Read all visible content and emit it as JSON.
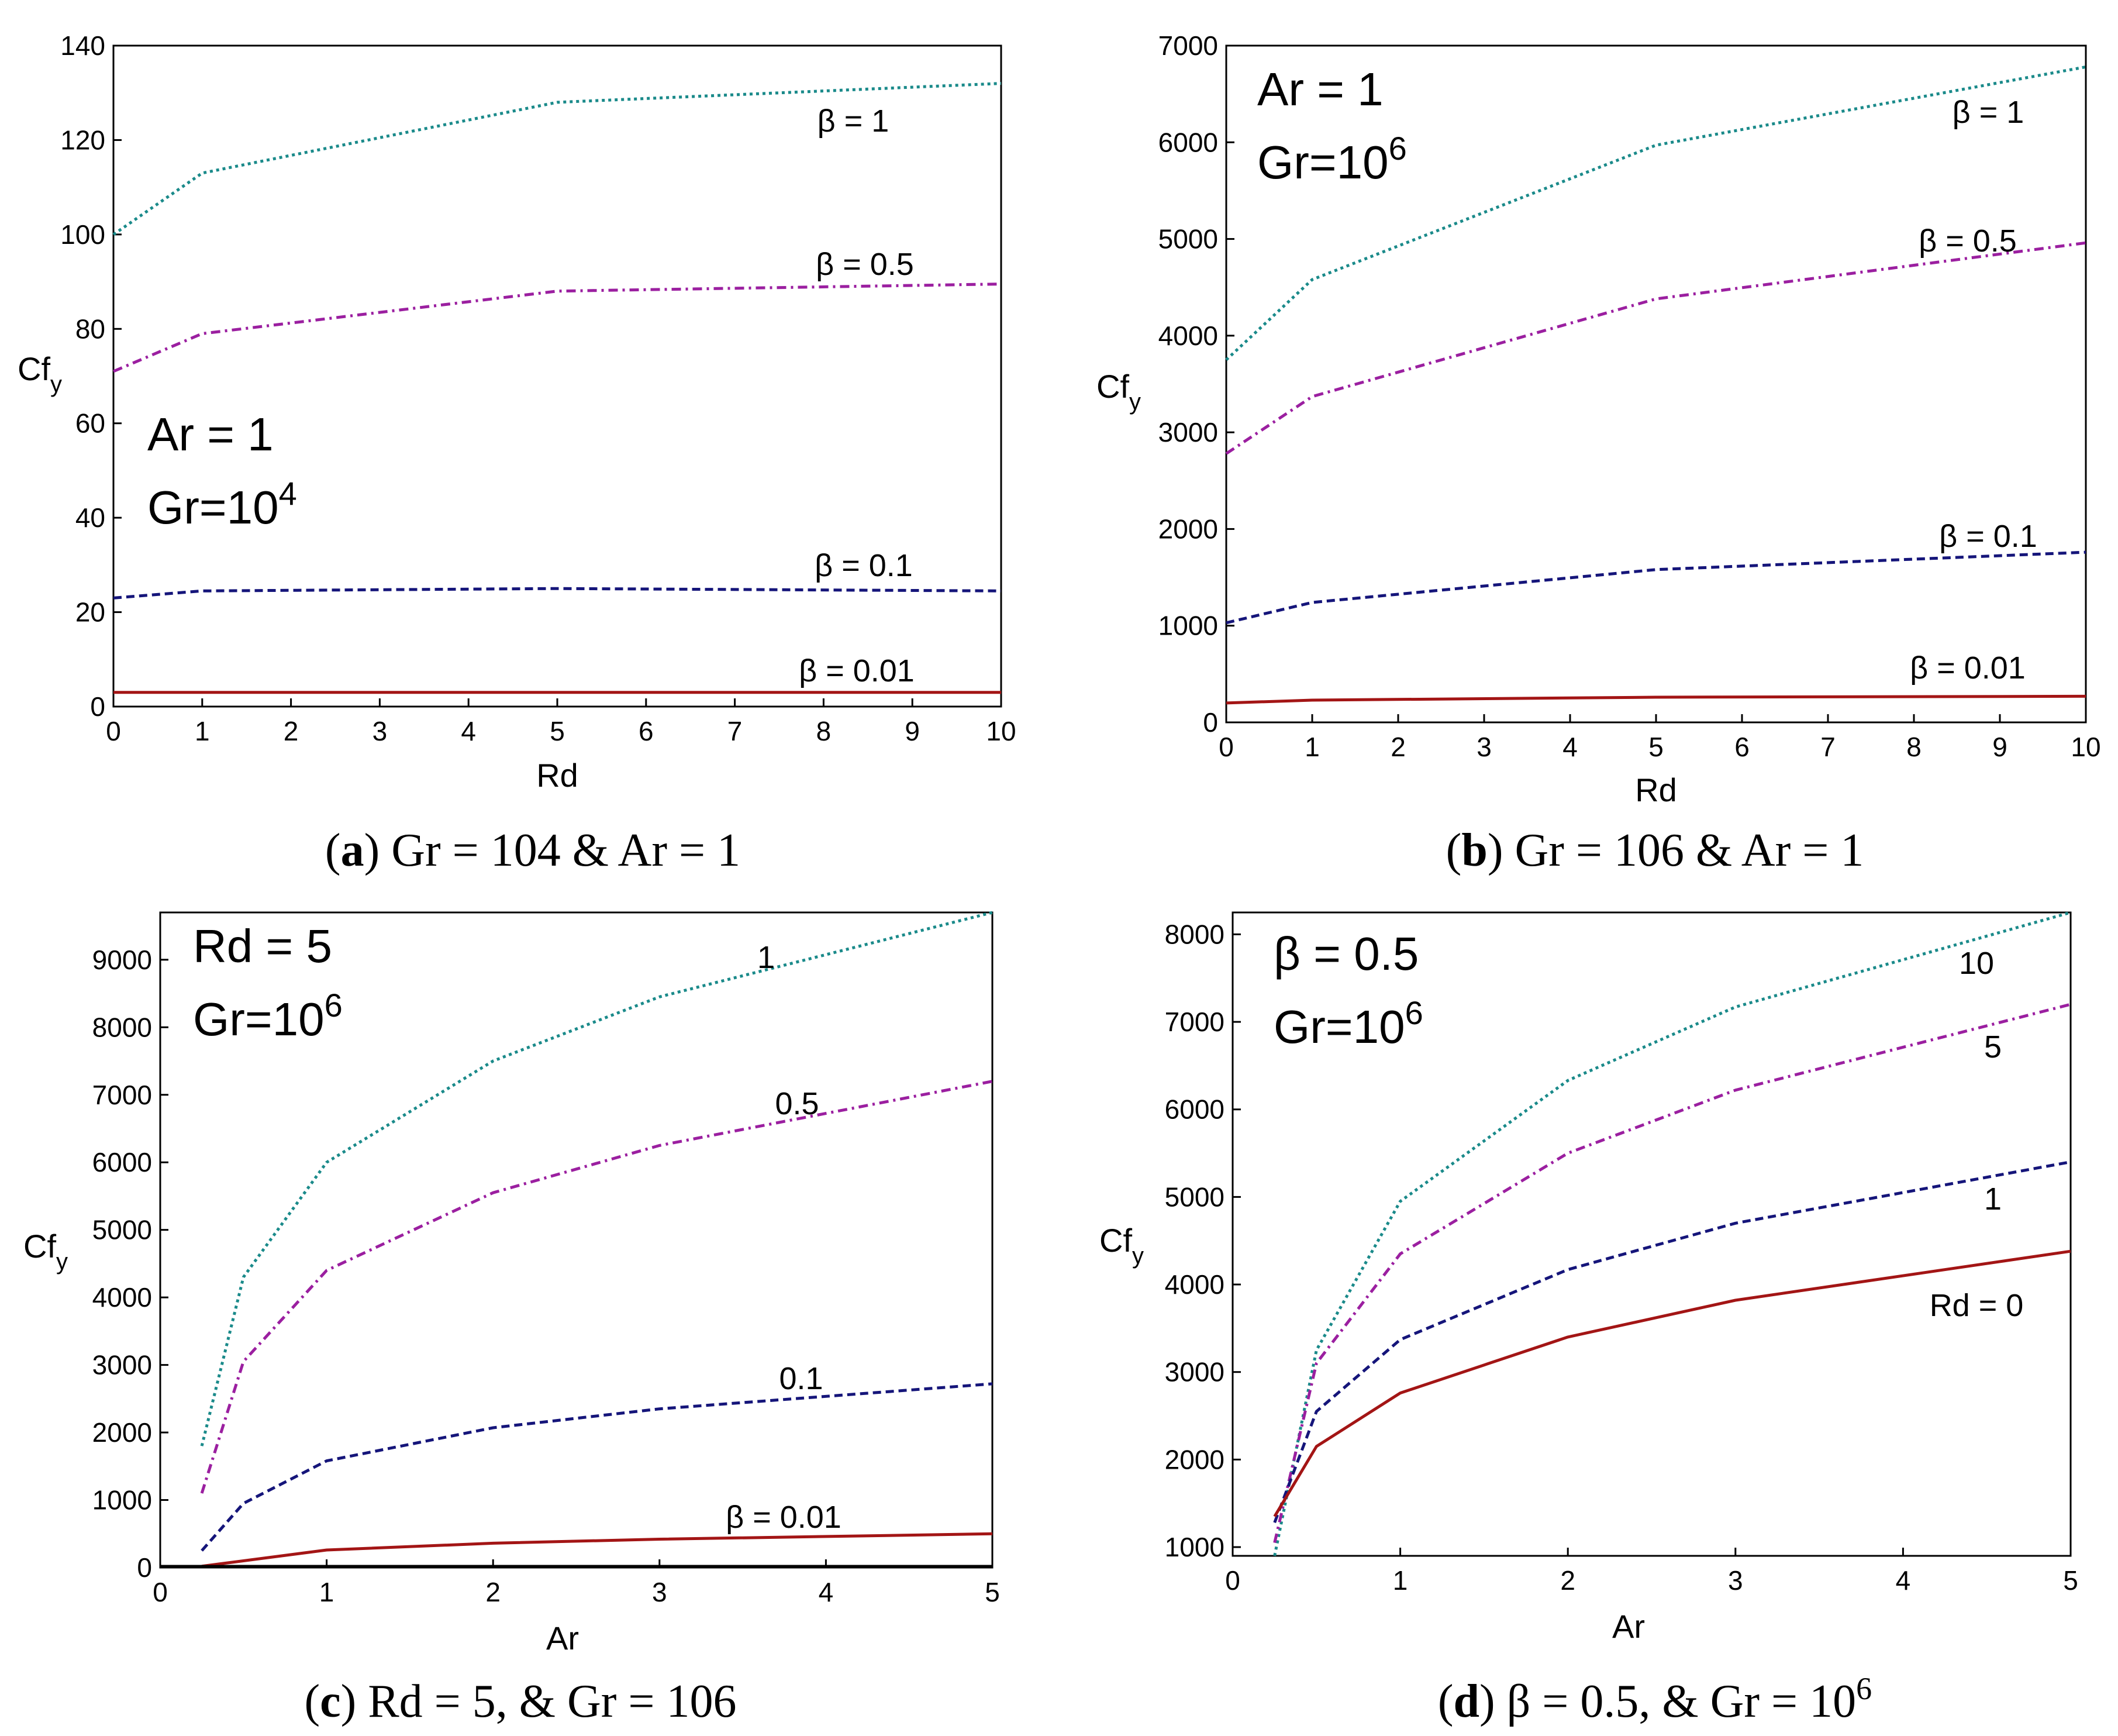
{
  "colors": {
    "teal": "#1a8a8a",
    "purple": "#9b1fa0",
    "navy": "#15157a",
    "red": "#a31515"
  },
  "chart_data": [
    {
      "id": "a",
      "type": "line",
      "xlabel": "Rd",
      "ylabel": "Cf",
      "ylabel_sub": "y",
      "x_ticks": [
        "0",
        "1",
        "2",
        "3",
        "4",
        "5",
        "6",
        "7",
        "8",
        "9",
        "10"
      ],
      "y_ticks": [
        "0",
        "20",
        "40",
        "60",
        "80",
        "100",
        "120",
        "140"
      ],
      "xlim": [
        0,
        10
      ],
      "ylim": [
        0,
        140
      ],
      "inset": {
        "line1": "Ar = 1",
        "line2_base": "Gr=10",
        "line2_sup": "4"
      },
      "caption": {
        "letter": "a",
        "text": " Gr = 104 & Ar = 1",
        "sup": ""
      },
      "series": [
        {
          "name": "β = 1",
          "style": "dotted",
          "color": "#1a8a8a",
          "x": [
            0,
            1,
            5,
            10
          ],
          "y": [
            100,
            113,
            128,
            132
          ]
        },
        {
          "name": "β = 0.5",
          "style": "dashdot",
          "color": "#9b1fa0",
          "x": [
            0,
            1,
            5,
            10
          ],
          "y": [
            71,
            79,
            88,
            89.5
          ]
        },
        {
          "name": "β = 0.1",
          "style": "dashed",
          "color": "#15157a",
          "x": [
            0,
            1,
            5,
            10
          ],
          "y": [
            23,
            24.5,
            25,
            24.5
          ]
        },
        {
          "name": "β = 0.01",
          "style": "solid",
          "color": "#a31515",
          "x": [
            0,
            1,
            5,
            10
          ],
          "y": [
            3,
            3,
            3,
            3
          ]
        }
      ]
    },
    {
      "id": "b",
      "type": "line",
      "xlabel": "Rd",
      "ylabel": "Cf",
      "ylabel_sub": "y",
      "x_ticks": [
        "0",
        "1",
        "2",
        "3",
        "4",
        "5",
        "6",
        "7",
        "8",
        "9",
        "10"
      ],
      "y_ticks": [
        "0",
        "1000",
        "2000",
        "3000",
        "4000",
        "5000",
        "6000",
        "7000"
      ],
      "xlim": [
        0,
        10
      ],
      "ylim": [
        0,
        7000
      ],
      "inset": {
        "line1": "Ar = 1",
        "line2_base": "Gr=10",
        "line2_sup": "6"
      },
      "caption": {
        "letter": "b",
        "text": " Gr = 106 & Ar = 1",
        "sup": ""
      },
      "series": [
        {
          "name": "β = 1",
          "style": "dotted",
          "color": "#1a8a8a",
          "x": [
            0,
            1,
            5,
            10
          ],
          "y": [
            3750,
            4580,
            5970,
            6780
          ]
        },
        {
          "name": "β = 0.5",
          "style": "dashdot",
          "color": "#9b1fa0",
          "x": [
            0,
            1,
            5,
            10
          ],
          "y": [
            2780,
            3370,
            4380,
            4960
          ]
        },
        {
          "name": "β = 0.1",
          "style": "dashed",
          "color": "#15157a",
          "x": [
            0,
            1,
            5,
            10
          ],
          "y": [
            1030,
            1240,
            1580,
            1760
          ]
        },
        {
          "name": "β = 0.01",
          "style": "solid",
          "color": "#a31515",
          "x": [
            0,
            1,
            5,
            10
          ],
          "y": [
            200,
            230,
            260,
            270
          ]
        }
      ]
    },
    {
      "id": "c",
      "type": "line",
      "xlabel": "Ar",
      "ylabel": "Cf",
      "ylabel_sub": "y",
      "x_ticks": [
        "0",
        "1",
        "2",
        "3",
        "4",
        "5"
      ],
      "y_ticks": [
        "0",
        "1000",
        "2000",
        "3000",
        "4000",
        "5000",
        "6000",
        "7000",
        "8000",
        "9000"
      ],
      "xlim": [
        0,
        5
      ],
      "ylim": [
        0,
        9700
      ],
      "inset": {
        "line1": "Rd = 5",
        "line2_base": "Gr=10",
        "line2_sup": "6"
      },
      "caption": {
        "letter": "c",
        "text": " Rd = 5, & Gr = 106",
        "sup": ""
      },
      "series": [
        {
          "name": "1",
          "style": "dotted",
          "color": "#1a8a8a",
          "x": [
            0.25,
            0.5,
            1,
            2,
            3,
            5
          ],
          "y": [
            1800,
            4300,
            6000,
            7500,
            8450,
            9700
          ]
        },
        {
          "name": "0.5",
          "style": "dashdot",
          "color": "#9b1fa0",
          "x": [
            0.25,
            0.5,
            1,
            2,
            3,
            5
          ],
          "y": [
            1100,
            3050,
            4400,
            5550,
            6250,
            7200
          ]
        },
        {
          "name": "0.1",
          "style": "dashed",
          "color": "#15157a",
          "x": [
            0.25,
            0.5,
            1,
            2,
            3,
            5
          ],
          "y": [
            250,
            950,
            1580,
            2070,
            2350,
            2720
          ]
        },
        {
          "name": "β = 0.01",
          "style": "solid",
          "color": "#a31515",
          "x": [
            0.25,
            0.5,
            1,
            2,
            3,
            5
          ],
          "y": [
            20,
            100,
            260,
            360,
            420,
            500
          ]
        }
      ]
    },
    {
      "id": "d",
      "type": "line",
      "xlabel": "Ar",
      "ylabel": "Cf",
      "ylabel_sub": "y",
      "x_ticks": [
        "0",
        "1",
        "2",
        "3",
        "4",
        "5"
      ],
      "y_ticks": [
        "1000",
        "2000",
        "3000",
        "4000",
        "5000",
        "6000",
        "7000",
        "8000"
      ],
      "xlim": [
        0,
        5
      ],
      "ylim": [
        900,
        8250
      ],
      "inset": {
        "line1": "β = 0.5",
        "line2_base": "Gr=10",
        "line2_sup": "6"
      },
      "caption": {
        "letter": "d",
        "text": " β = 0.5, & Gr = 10",
        "sup": "6"
      },
      "series": [
        {
          "name": "10",
          "style": "dotted",
          "color": "#1a8a8a",
          "x": [
            0.25,
            0.5,
            1,
            2,
            3,
            5
          ],
          "y": [
            900,
            3250,
            4950,
            6330,
            7170,
            8250
          ]
        },
        {
          "name": "5",
          "style": "dashdot",
          "color": "#9b1fa0",
          "x": [
            0.25,
            0.5,
            1,
            2,
            3,
            5
          ],
          "y": [
            1050,
            3100,
            4350,
            5500,
            6220,
            7200
          ]
        },
        {
          "name": "1",
          "style": "dashed",
          "color": "#15157a",
          "x": [
            0.25,
            0.5,
            1,
            2,
            3,
            5
          ],
          "y": [
            1280,
            2550,
            3370,
            4170,
            4700,
            5400
          ]
        },
        {
          "name": "Rd = 0",
          "style": "solid",
          "color": "#a31515",
          "x": [
            0.25,
            0.5,
            1,
            2,
            3,
            5
          ],
          "y": [
            1350,
            2150,
            2760,
            3400,
            3820,
            4380
          ]
        }
      ]
    }
  ]
}
